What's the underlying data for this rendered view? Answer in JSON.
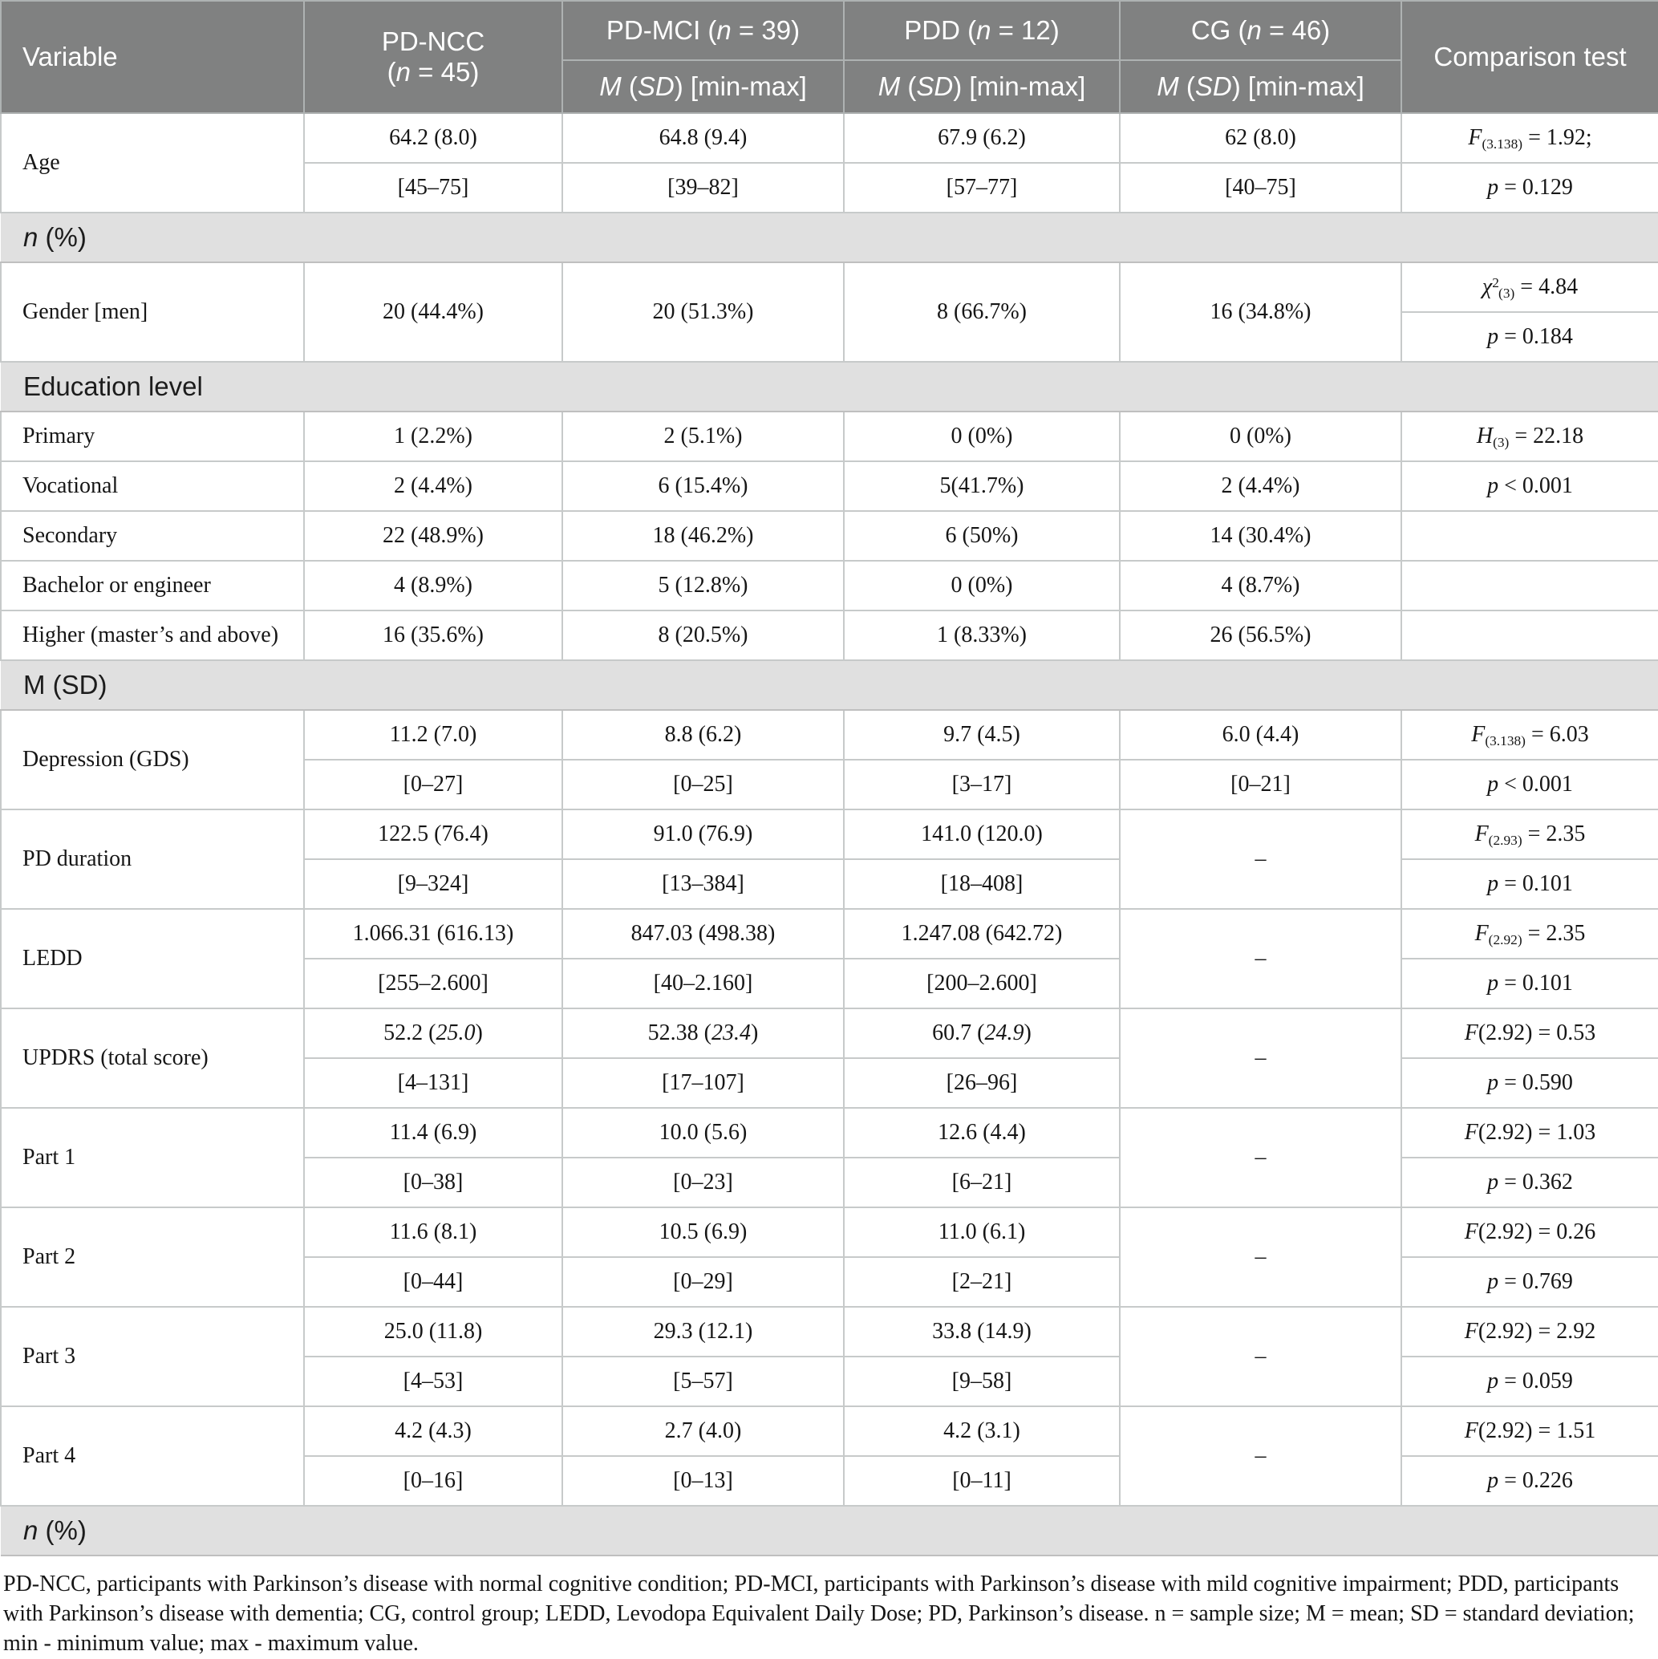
{
  "table": {
    "header": {
      "variable": "Variable",
      "pdncc_line1": "PD-NCC",
      "pdncc_line2": [
        {
          "t": "("
        },
        {
          "t": "n",
          "i": true
        },
        {
          "t": " = 45)"
        }
      ],
      "pdmci": [
        {
          "t": "PD-MCI ("
        },
        {
          "t": "n",
          "i": true
        },
        {
          "t": " = 39)"
        }
      ],
      "pdd": [
        {
          "t": "PDD ("
        },
        {
          "t": "n",
          "i": true
        },
        {
          "t": " = 12)"
        }
      ],
      "cg": [
        {
          "t": "CG ("
        },
        {
          "t": "n",
          "i": true
        },
        {
          "t": " = 46)"
        }
      ],
      "subheader": [
        {
          "t": "M",
          "i": true
        },
        {
          "t": " ("
        },
        {
          "t": "SD",
          "i": true
        },
        {
          "t": ") [min-max]"
        }
      ],
      "comparison": "Comparison test"
    },
    "rows": [
      {
        "type": "pair",
        "label": "Age",
        "cols": [
          {
            "top": "64.2 (8.0)",
            "bottom": "[45–75]"
          },
          {
            "top": "64.8 (9.4)",
            "bottom": "[39–82]"
          },
          {
            "top": "67.9 (6.2)",
            "bottom": "[57–77]"
          },
          {
            "top": "62 (8.0)",
            "bottom": "[40–75]"
          }
        ],
        "stat_top": [
          {
            "t": "F",
            "i": true
          },
          {
            "t": "(3.138)",
            "sub": true
          },
          {
            "t": " = 1.92;"
          }
        ],
        "stat_bottom": [
          {
            "t": "p",
            "i": true
          },
          {
            "t": " = 0.129"
          }
        ]
      },
      {
        "type": "section",
        "label": [
          {
            "t": "n",
            "i": true
          },
          {
            "t": " (%)"
          }
        ]
      },
      {
        "type": "pair",
        "label": "Gender [men]",
        "cols": [
          {
            "merged": "20 (44.4%)"
          },
          {
            "merged": "20 (51.3%)"
          },
          {
            "merged": "8 (66.7%)"
          },
          {
            "merged": "16 (34.8%)"
          }
        ],
        "stat_top": [
          {
            "t": "χ",
            "i": true
          },
          {
            "t": "2",
            "sup": true
          },
          {
            "t": "(3)",
            "sub": true
          },
          {
            "t": " = 4.84"
          }
        ],
        "stat_bottom": [
          {
            "t": "p",
            "i": true
          },
          {
            "t": " = 0.184"
          }
        ]
      },
      {
        "type": "section",
        "label": "Education level"
      },
      {
        "type": "single",
        "label": "Primary",
        "cells": [
          "1 (2.2%)",
          "2 (5.1%)",
          "0 (0%)",
          "0 (0%)"
        ],
        "stat": [
          {
            "t": "H",
            "i": true
          },
          {
            "t": "(3)",
            "sub": true
          },
          {
            "t": " = 22.18"
          }
        ]
      },
      {
        "type": "single",
        "label": "Vocational",
        "cells": [
          "2 (4.4%)",
          "6 (15.4%)",
          "5(41.7%)",
          "2 (4.4%)"
        ],
        "stat": [
          {
            "t": "p",
            "i": true
          },
          {
            "t": " < 0.001"
          }
        ]
      },
      {
        "type": "single",
        "label": "Secondary",
        "cells": [
          "22 (48.9%)",
          "18 (46.2%)",
          "6 (50%)",
          "14 (30.4%)"
        ],
        "stat": ""
      },
      {
        "type": "single",
        "label": "Bachelor or engineer",
        "cells": [
          "4 (8.9%)",
          "5 (12.8%)",
          "0 (0%)",
          "4 (8.7%)"
        ],
        "stat": ""
      },
      {
        "type": "single",
        "label": "Higher (master’s and above)",
        "cells": [
          "16 (35.6%)",
          "8 (20.5%)",
          "1 (8.33%)",
          "26 (56.5%)"
        ],
        "stat": ""
      },
      {
        "type": "section",
        "label": "M (SD)"
      },
      {
        "type": "pair",
        "label": "Depression (GDS)",
        "cols": [
          {
            "top": "11.2 (7.0)",
            "bottom": "[0–27]"
          },
          {
            "top": "8.8 (6.2)",
            "bottom": "[0–25]"
          },
          {
            "top": "9.7 (4.5)",
            "bottom": "[3–17]"
          },
          {
            "top": "6.0 (4.4)",
            "bottom": "[0–21]"
          }
        ],
        "stat_top": [
          {
            "t": "F",
            "i": true
          },
          {
            "t": "(3.138)",
            "sub": true
          },
          {
            "t": " = 6.03"
          }
        ],
        "stat_bottom": [
          {
            "t": "p",
            "i": true
          },
          {
            "t": " < 0.001"
          }
        ]
      },
      {
        "type": "pair",
        "label": "PD duration",
        "cols": [
          {
            "top": "122.5 (76.4)",
            "bottom": "[9–324]"
          },
          {
            "top": "91.0 (76.9)",
            "bottom": "[13–384]"
          },
          {
            "top": "141.0 (120.0)",
            "bottom": "[18–408]"
          },
          {
            "merged": "–"
          }
        ],
        "stat_top": [
          {
            "t": "F",
            "i": true
          },
          {
            "t": "(2.93)",
            "sub": true
          },
          {
            "t": " = 2.35"
          }
        ],
        "stat_bottom": [
          {
            "t": "p",
            "i": true
          },
          {
            "t": " = 0.101"
          }
        ]
      },
      {
        "type": "pair",
        "label": "LEDD",
        "cols": [
          {
            "top": "1.066.31 (616.13)",
            "bottom": "[255–2.600]"
          },
          {
            "top": "847.03 (498.38)",
            "bottom": "[40–2.160]"
          },
          {
            "top": "1.247.08 (642.72)",
            "bottom": "[200–2.600]"
          },
          {
            "merged": "–"
          }
        ],
        "stat_top": [
          {
            "t": "F",
            "i": true
          },
          {
            "t": "(2.92)",
            "sub": true
          },
          {
            "t": " = 2.35"
          }
        ],
        "stat_bottom": [
          {
            "t": "p",
            "i": true
          },
          {
            "t": " = 0.101"
          }
        ]
      },
      {
        "type": "pair",
        "label": "UPDRS (total score)",
        "cols": [
          {
            "top": [
              {
                "t": "52.2 ("
              },
              {
                "t": "25.0",
                "i": true
              },
              {
                "t": ")"
              }
            ],
            "bottom": "[4–131]"
          },
          {
            "top": [
              {
                "t": "52.38 ("
              },
              {
                "t": "23.4",
                "i": true
              },
              {
                "t": ")"
              }
            ],
            "bottom": "[17–107]"
          },
          {
            "top": [
              {
                "t": "60.7 ("
              },
              {
                "t": "24.9",
                "i": true
              },
              {
                "t": ")"
              }
            ],
            "bottom": "[26–96]"
          },
          {
            "merged": "–"
          }
        ],
        "stat_top": [
          {
            "t": "F",
            "i": true
          },
          {
            "t": "(2.92) = 0.53"
          }
        ],
        "stat_bottom": [
          {
            "t": "p",
            "i": true
          },
          {
            "t": " = 0.590"
          }
        ]
      },
      {
        "type": "pair",
        "label": "Part 1",
        "cols": [
          {
            "top": "11.4 (6.9)",
            "bottom": "[0–38]"
          },
          {
            "top": "10.0 (5.6)",
            "bottom": "[0–23]"
          },
          {
            "top": "12.6 (4.4)",
            "bottom": "[6–21]"
          },
          {
            "merged": "–"
          }
        ],
        "stat_top": [
          {
            "t": "F",
            "i": true
          },
          {
            "t": "(2.92) = 1.03"
          }
        ],
        "stat_bottom": [
          {
            "t": "p",
            "i": true
          },
          {
            "t": " = 0.362"
          }
        ]
      },
      {
        "type": "pair",
        "label": "Part 2",
        "cols": [
          {
            "top": "11.6 (8.1)",
            "bottom": "[0–44]"
          },
          {
            "top": "10.5 (6.9)",
            "bottom": "[0–29]"
          },
          {
            "top": "11.0 (6.1)",
            "bottom": "[2–21]"
          },
          {
            "merged": "–"
          }
        ],
        "stat_top": [
          {
            "t": "F",
            "i": true
          },
          {
            "t": "(2.92) = 0.26"
          }
        ],
        "stat_bottom": [
          {
            "t": "p",
            "i": true
          },
          {
            "t": " = 0.769"
          }
        ]
      },
      {
        "type": "pair",
        "label": "Part 3",
        "cols": [
          {
            "top": "25.0 (11.8)",
            "bottom": "[4–53]"
          },
          {
            "top": "29.3 (12.1)",
            "bottom": "[5–57]"
          },
          {
            "top": "33.8 (14.9)",
            "bottom": "[9–58]"
          },
          {
            "merged": "–"
          }
        ],
        "stat_top": [
          {
            "t": "F",
            "i": true
          },
          {
            "t": "(2.92) = 2.92"
          }
        ],
        "stat_bottom": [
          {
            "t": "p",
            "i": true
          },
          {
            "t": " = 0.059"
          }
        ]
      },
      {
        "type": "pair",
        "label": "Part 4",
        "cols": [
          {
            "top": "4.2 (4.3)",
            "bottom": "[0–16]"
          },
          {
            "top": "2.7 (4.0)",
            "bottom": "[0–13]"
          },
          {
            "top": "4.2 (3.1)",
            "bottom": "[0–11]"
          },
          {
            "merged": "–"
          }
        ],
        "stat_top": [
          {
            "t": "F",
            "i": true
          },
          {
            "t": "(2.92) = 1.51"
          }
        ],
        "stat_bottom": [
          {
            "t": "p",
            "i": true
          },
          {
            "t": " = 0.226"
          }
        ]
      },
      {
        "type": "section",
        "label": [
          {
            "t": "n",
            "i": true
          },
          {
            "t": " (%)"
          }
        ]
      }
    ]
  },
  "footnote": "PD-NCC, participants with Parkinson’s disease with normal cognitive condition; PD-MCI, participants with Parkinson’s disease with mild cognitive impairment; PDD, participants with Parkinson’s disease with dementia; CG, control group; LEDD, Levodopa Equivalent Daily Dose; PD, Parkinson’s disease. n = sample size; M = mean; SD = standard deviation; min - minimum value; max - maximum value.",
  "colors": {
    "header_bg": "#808181",
    "header_text": "#ffffff",
    "section_band_bg": "#e0e0e0",
    "body_border": "#c7caca",
    "text": "#161616"
  }
}
